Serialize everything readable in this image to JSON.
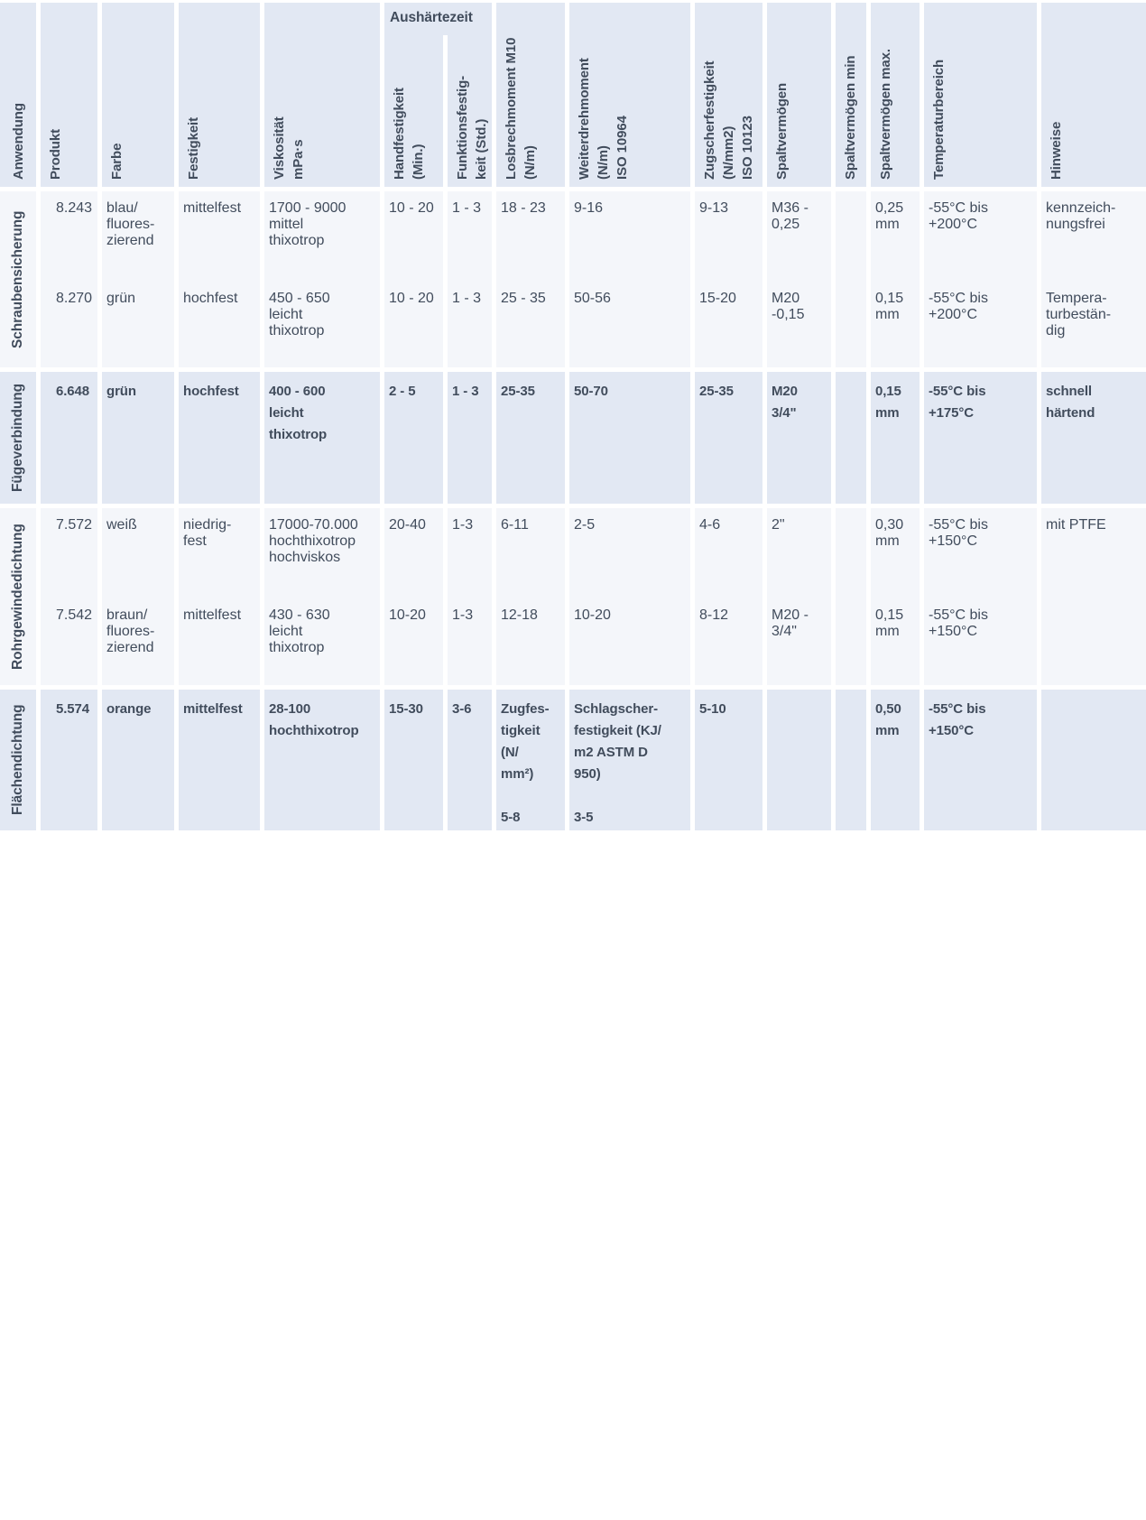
{
  "colors": {
    "band_dark": "#e2e8f3",
    "band_light": "#f4f6fa",
    "text": "#414c5c",
    "gap": "#ffffff"
  },
  "headers": {
    "anwendung": "Anwendung",
    "produkt": "Produkt",
    "farbe": "Farbe",
    "festigkeit": "Festigkeit",
    "viskositaet": "Viskosität\nmPa·s",
    "aushaertezeit": "Aushärtezeit",
    "handfestigkeit": "Handfestigkeit\n(Min.)",
    "funktionsfestigkeit": "Funktionsfestig-\nkeit (Std.)",
    "losbrechmoment": "Losbrechmoment M10\n(N/m)",
    "weiterdrehmoment": "Weiterdrehmoment\n(N/m)\nISO 10964",
    "zugscherfestigkeit": "Zugscherfestigkeit\n(N/mm2)\nISO 10123",
    "spaltvermoegen": "Spaltvermögen",
    "spaltvermoegen_min": "Spaltvermögen min",
    "spaltvermoegen_max": "Spaltvermögen max.",
    "temperaturbereich": "Temperaturbereich",
    "hinweise": "Hinweise"
  },
  "groups": [
    {
      "label": "Schraubensicherung",
      "rows": [
        {
          "produkt": "8.243",
          "farbe": "blau/\nfluores-\nzierend",
          "festigkeit": "mittelfest",
          "viskositaet": "1700 - 9000\nmittel\nthixotrop",
          "handfestigkeit": "10 - 20",
          "funktionsfestigkeit": "1 - 3",
          "losbrechmoment": "18 - 23",
          "weiterdrehmoment": "9-16",
          "zugscherfestigkeit": "9-13",
          "spaltvermoegen": "M36 -\n0,25",
          "spaltvermoegen_min": "",
          "spaltvermoegen_max": "0,25\nmm",
          "temperaturbereich": "-55°C bis\n+200°C",
          "hinweise": "kennzeich-\nnungsfrei"
        },
        {
          "produkt": "8.270",
          "farbe": "grün",
          "festigkeit": "hochfest",
          "viskositaet": "450 - 650\nleicht\nthixotrop",
          "handfestigkeit": "10 - 20",
          "funktionsfestigkeit": "1 - 3",
          "losbrechmoment": "25 - 35",
          "weiterdrehmoment": "50-56",
          "zugscherfestigkeit": "15-20",
          "spaltvermoegen": "M20\n-0,15",
          "spaltvermoegen_min": "",
          "spaltvermoegen_max": "0,15\nmm",
          "temperaturbereich": "-55°C bis\n+200°C",
          "hinweise": "Tempera-\nturbestän-\ndig"
        }
      ]
    },
    {
      "label": "Fügeverbindung",
      "rows": [
        {
          "produkt": "6.648",
          "farbe": "grün",
          "festigkeit": "hochfest",
          "viskositaet": "400 - 600\nleicht\nthixotrop",
          "handfestigkeit": "2 - 5",
          "funktionsfestigkeit": "1 - 3",
          "losbrechmoment": "25-35",
          "weiterdrehmoment": "50-70",
          "zugscherfestigkeit": "25-35",
          "spaltvermoegen": "M20\n3/4\"",
          "spaltvermoegen_min": "",
          "spaltvermoegen_max": "0,15\nmm",
          "temperaturbereich": "-55°C bis\n+175°C",
          "hinweise": "schnell\nhärtend"
        }
      ]
    },
    {
      "label": "Rohrgewindedichtung",
      "rows": [
        {
          "produkt": "7.572",
          "farbe": "weiß",
          "festigkeit": "niedrig-\nfest",
          "viskositaet": "17000-70.000\nhochthixotrop\nhochviskos",
          "handfestigkeit": "20-40",
          "funktionsfestigkeit": "1-3",
          "losbrechmoment": "6-11",
          "weiterdrehmoment": "2-5",
          "zugscherfestigkeit": "4-6",
          "spaltvermoegen": "2\"",
          "spaltvermoegen_min": "",
          "spaltvermoegen_max": "0,30\nmm",
          "temperaturbereich": "-55°C bis\n+150°C",
          "hinweise": "mit PTFE"
        },
        {
          "produkt": "7.542",
          "farbe": "braun/\nfluores-\nzierend",
          "festigkeit": "mittelfest",
          "viskositaet": "430 - 630\nleicht\nthixotrop",
          "handfestigkeit": "10-20",
          "funktionsfestigkeit": "1-3",
          "losbrechmoment": "12-18",
          "weiterdrehmoment": "10-20",
          "zugscherfestigkeit": "8-12",
          "spaltvermoegen": "M20 -\n3/4\"",
          "spaltvermoegen_min": "",
          "spaltvermoegen_max": "0,15\nmm",
          "temperaturbereich": "-55°C bis\n+150°C",
          "hinweise": ""
        }
      ]
    },
    {
      "label": "Flächendichtung",
      "rows": [
        {
          "produkt": "5.574",
          "farbe": "orange",
          "festigkeit": "mittelfest",
          "viskositaet": "28-100\nhochthixotrop",
          "handfestigkeit": "15-30",
          "funktionsfestigkeit": "3-6",
          "losbrechmoment": "Zugfes-\ntigkeit\n(N/\nmm²)\n\n5-8",
          "weiterdrehmoment": "Schlagscher-\nfestigkeit (KJ/\nm2 ASTM D\n950)\n\n3-5",
          "zugscherfestigkeit": "5-10",
          "spaltvermoegen": "",
          "spaltvermoegen_min": "",
          "spaltvermoegen_max": "0,50\nmm",
          "temperaturbereich": "-55°C bis\n+150°C",
          "hinweise": ""
        }
      ]
    }
  ]
}
